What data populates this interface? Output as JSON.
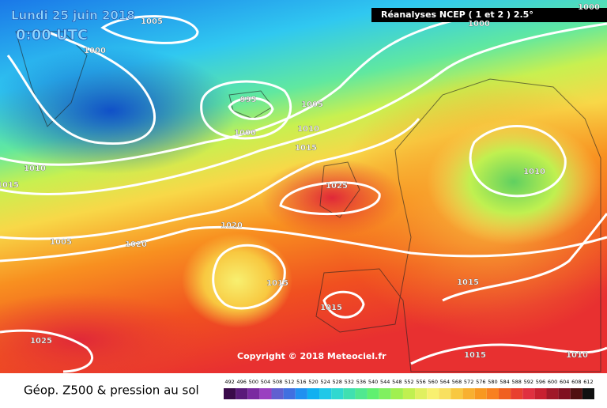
{
  "header": {
    "date": "Lundi 25 juin 2018",
    "time": "0:00 UTC",
    "source": "Réanalyses NCEP ( 1 et 2 ) 2.5°"
  },
  "copyright": "Copyright © 2018 Meteociel.fr",
  "footer_title": "Géop. Z500 & pression au sol",
  "isobar_labels": [
    1005,
    1000,
    995,
    1000,
    1005,
    1010,
    1015,
    1010,
    1015,
    1025,
    1010,
    1020,
    1020,
    1005,
    1015,
    1015,
    1015,
    1025,
    1015,
    1010,
    1000,
    1000
  ],
  "colorbar": {
    "levels": [
      492,
      496,
      500,
      504,
      508,
      512,
      516,
      520,
      524,
      528,
      532,
      536,
      540,
      544,
      548,
      552,
      556,
      560,
      564,
      568,
      572,
      576,
      580,
      584,
      588,
      592,
      596,
      600,
      604,
      608,
      612
    ],
    "colors": [
      "#3a0a4a",
      "#5a1a7a",
      "#7a2aa0",
      "#9a40c0",
      "#6060d0",
      "#4070e0",
      "#2090f0",
      "#10b0f0",
      "#20c8e8",
      "#30d8d0",
      "#40e0b0",
      "#50e890",
      "#60f070",
      "#80f060",
      "#a0f050",
      "#c0f050",
      "#e0f060",
      "#f8f070",
      "#f8e060",
      "#f8c840",
      "#f8b030",
      "#f89820",
      "#f88020",
      "#f06020",
      "#e84030",
      "#e03040",
      "#c82030",
      "#a01828",
      "#801020",
      "#501010",
      "#101010"
    ]
  }
}
